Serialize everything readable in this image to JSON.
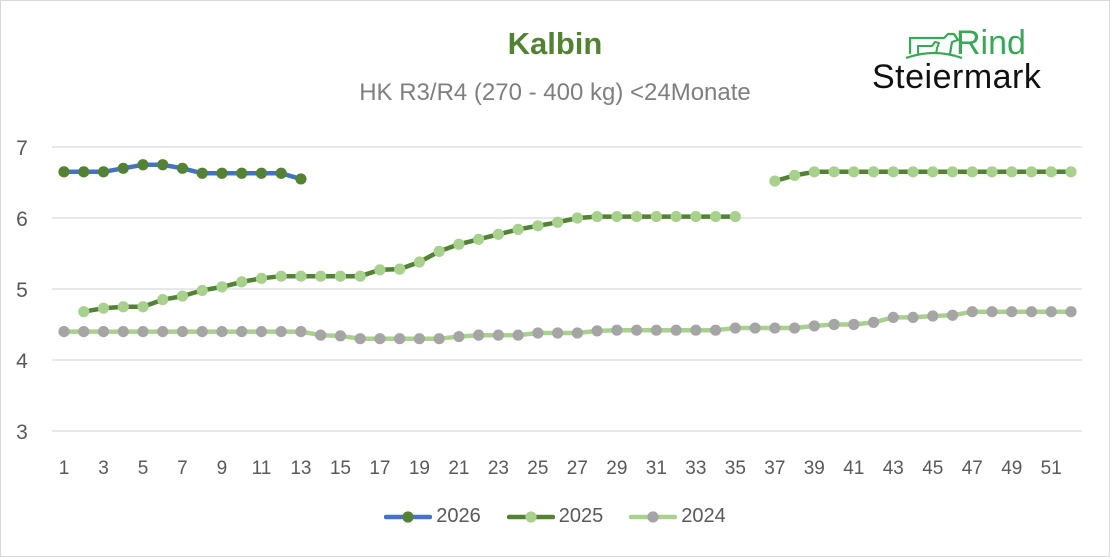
{
  "header": {
    "title": "Kalbin",
    "subtitle": "HK R3/R4 (270 - 400 kg) <24Monate"
  },
  "logo": {
    "line1": "Rind",
    "line2": "Steiermark",
    "icon": "cow-and-calf-icon",
    "color_line1": "#3aa657",
    "color_line2": "#111111"
  },
  "legend": [
    {
      "label": "2026",
      "line_color": "#4472c4",
      "marker_color": "#548235"
    },
    {
      "label": "2025",
      "line_color": "#548235",
      "marker_color": "#a9d18e"
    },
    {
      "label": "2024",
      "line_color": "#a9d18e",
      "marker_color": "#a5a5a5"
    }
  ],
  "chart_data": {
    "type": "line",
    "title": "Kalbin",
    "subtitle": "HK R3/R4 (270 - 400 kg) <24Monate",
    "xlabel": "",
    "ylabel": "",
    "ylim": [
      3,
      7
    ],
    "yticks": [
      3,
      4,
      5,
      6,
      7
    ],
    "x": [
      1,
      2,
      3,
      4,
      5,
      6,
      7,
      8,
      9,
      10,
      11,
      12,
      13,
      14,
      15,
      16,
      17,
      18,
      19,
      20,
      21,
      22,
      23,
      24,
      25,
      26,
      27,
      28,
      29,
      30,
      31,
      32,
      33,
      34,
      35,
      36,
      37,
      38,
      39,
      40,
      41,
      42,
      43,
      44,
      45,
      46,
      47,
      48,
      49,
      50,
      51,
      52
    ],
    "xtick_labels": [
      "1",
      "3",
      "5",
      "7",
      "9",
      "11",
      "13",
      "15",
      "17",
      "19",
      "21",
      "23",
      "25",
      "27",
      "29",
      "31",
      "33",
      "35",
      "37",
      "39",
      "41",
      "43",
      "45",
      "47",
      "49",
      "51"
    ],
    "grid": "horizontal",
    "legend_position": "bottom",
    "series": [
      {
        "name": "2026",
        "line_color": "#4472c4",
        "marker_color": "#548235",
        "values": [
          6.65,
          6.65,
          6.65,
          6.7,
          6.75,
          6.75,
          6.7,
          6.63,
          6.63,
          6.63,
          6.63,
          6.63,
          6.55,
          null,
          null,
          null,
          null,
          null,
          null,
          null,
          null,
          null,
          null,
          null,
          null,
          null,
          null,
          null,
          null,
          null,
          null,
          null,
          null,
          null,
          null,
          null,
          null,
          null,
          null,
          null,
          null,
          null,
          null,
          null,
          null,
          null,
          null,
          null,
          null,
          null,
          null,
          null
        ]
      },
      {
        "name": "2025",
        "line_color": "#548235",
        "marker_color": "#a9d18e",
        "values": [
          null,
          4.68,
          4.73,
          4.75,
          4.75,
          4.85,
          4.9,
          4.98,
          5.03,
          5.1,
          5.15,
          5.18,
          5.18,
          5.18,
          5.18,
          5.18,
          5.27,
          5.28,
          5.38,
          5.53,
          5.63,
          5.7,
          5.77,
          5.84,
          5.89,
          5.94,
          6.0,
          6.02,
          6.02,
          6.02,
          6.02,
          6.02,
          6.02,
          6.02,
          6.02,
          null,
          6.52,
          6.6,
          6.65,
          6.65,
          6.65,
          6.65,
          6.65,
          6.65,
          6.65,
          6.65,
          6.65,
          6.65,
          6.65,
          6.65,
          6.65,
          6.65
        ]
      },
      {
        "name": "2024",
        "line_color": "#a9d18e",
        "marker_color": "#a5a5a5",
        "values": [
          4.4,
          4.4,
          4.4,
          4.4,
          4.4,
          4.4,
          4.4,
          4.4,
          4.4,
          4.4,
          4.4,
          4.4,
          4.4,
          4.35,
          4.34,
          4.3,
          4.3,
          4.3,
          4.3,
          4.3,
          4.33,
          4.35,
          4.35,
          4.35,
          4.38,
          4.38,
          4.38,
          4.41,
          4.42,
          4.42,
          4.42,
          4.42,
          4.42,
          4.42,
          4.45,
          4.45,
          4.45,
          4.45,
          4.48,
          4.5,
          4.5,
          4.53,
          4.6,
          4.6,
          4.62,
          4.63,
          4.68,
          4.68,
          4.68,
          4.68,
          4.68,
          4.68
        ]
      }
    ]
  }
}
